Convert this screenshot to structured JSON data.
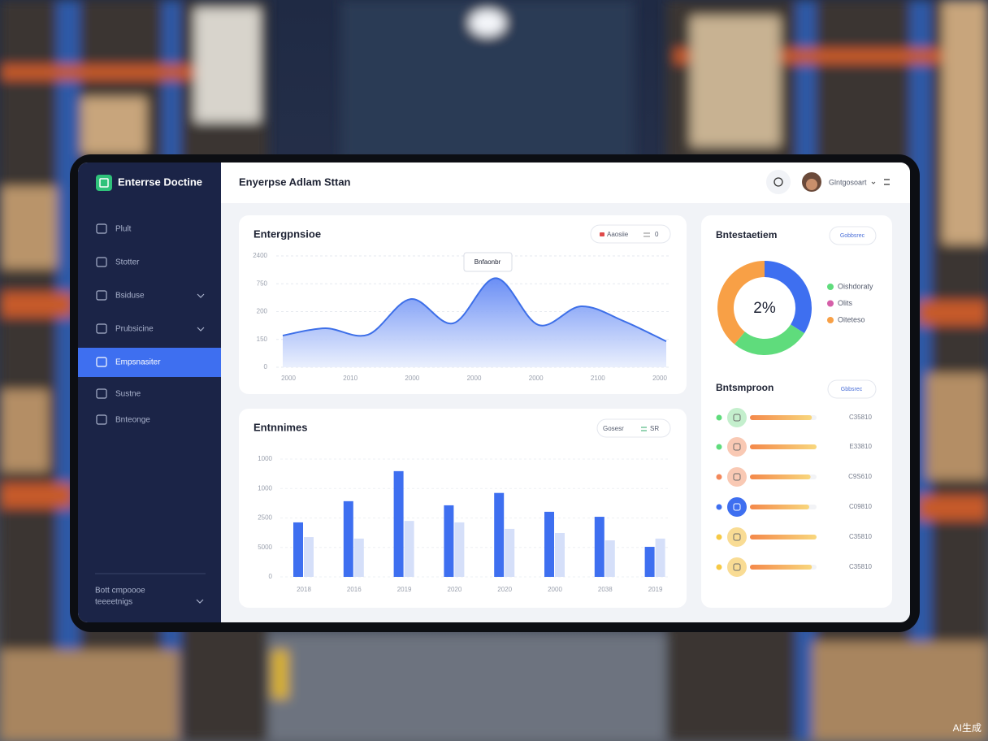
{
  "sidebar": {
    "brand": "Enterrse Doctine",
    "active": 4,
    "nav": [
      {
        "label": "Plult",
        "submenu": false
      },
      {
        "label": "Stotter",
        "submenu": false
      },
      {
        "label": "Bsiduse",
        "submenu": true
      },
      {
        "label": "Prubsicine",
        "submenu": true
      },
      {
        "label": "Empsnasiter",
        "submenu": false
      },
      {
        "label": "Sustne",
        "submenu": false
      },
      {
        "label": "Bnteonge",
        "submenu": false
      }
    ],
    "footer": [
      "Bott cmpoooe",
      "teeeetnigs"
    ]
  },
  "header": {
    "title": "Enyerpse Adlam Sttan",
    "user": "Glntgosoart"
  },
  "area_card": {
    "title": "Entergpnsioe",
    "filter": [
      "Aaosiie",
      "0"
    ],
    "tooltip": "Bnfaonbr",
    "chart": {
      "type": "area",
      "color": "#3d6fe8",
      "ylim": [
        0,
        4
      ],
      "yticks": [
        {
          "value": 0,
          "label": "0"
        },
        {
          "value": 1,
          "label": "150"
        },
        {
          "value": 2,
          "label": "200"
        },
        {
          "value": 3,
          "label": "750"
        },
        {
          "value": 4,
          "label": "2400"
        }
      ],
      "xlabels": [
        "2000",
        "2010",
        "2000",
        "2000",
        "2000",
        "2100",
        "2000"
      ],
      "values": [
        1.14,
        1.4,
        1.17,
        2.45,
        1.58,
        3.2,
        1.52,
        2.19,
        1.66,
        0.93
      ]
    }
  },
  "bar_card": {
    "title": "Entnnimes",
    "filter": [
      "Gosesr",
      "SR"
    ],
    "chart": {
      "type": "bar",
      "ylim": [
        0,
        4
      ],
      "yticks": [
        {
          "value": 0,
          "label": "0"
        },
        {
          "value": 1,
          "label": "5000"
        },
        {
          "value": 2,
          "label": "2500"
        },
        {
          "value": 3,
          "label": "1000"
        },
        {
          "value": 4,
          "label": "1000"
        }
      ],
      "categories": [
        "2018",
        "2016",
        "2019",
        "2020",
        "2020",
        "2000",
        "2038",
        "2019"
      ],
      "series": [
        {
          "color": "#3e6ff0",
          "values": [
            1.85,
            2.57,
            3.59,
            2.43,
            2.85,
            2.21,
            2.04,
            1.02
          ]
        },
        {
          "color": "#d5dff9",
          "values": [
            1.35,
            1.3,
            1.9,
            1.85,
            1.63,
            1.49,
            1.24,
            1.3
          ]
        }
      ]
    }
  },
  "donut_card": {
    "title": "Bntestaetiem",
    "filter": "Gobbsrec",
    "center": "2%",
    "chart": {
      "type": "pie",
      "values": [
        34,
        27,
        39
      ],
      "colors": [
        "#3e6ff0",
        "#5fdc7c",
        "#f8a046"
      ]
    },
    "legend": [
      {
        "label": "Oishdoraty",
        "color": "#5fdc7c"
      },
      {
        "label": "Olits",
        "color": "#d55fa8"
      },
      {
        "label": "Oiteteso",
        "color": "#f8a046"
      }
    ]
  },
  "ranking_card": {
    "title": "Bntsmproon",
    "filter": "Gbbsrec",
    "rows": [
      {
        "dot": "#5fdc7c",
        "icon": "#c4efcd",
        "progress": 93,
        "value": "C35810"
      },
      {
        "dot": "#5fdc7c",
        "icon": "#f9c9b4",
        "progress": 100,
        "value": "E33810"
      },
      {
        "dot": "#f3885a",
        "icon": "#f9c9b4",
        "progress": 91,
        "value": "C9S610"
      },
      {
        "dot": "#3e6ff0",
        "icon": "#3e6ff0",
        "progress": 89,
        "value": "C09810"
      },
      {
        "dot": "#f6c945",
        "icon": "#f9dc94",
        "progress": 100,
        "value": "C35810"
      },
      {
        "dot": "#f6c945",
        "icon": "#f9dc94",
        "progress": 93,
        "value": "C35810"
      }
    ]
  },
  "watermark": "AI生成"
}
